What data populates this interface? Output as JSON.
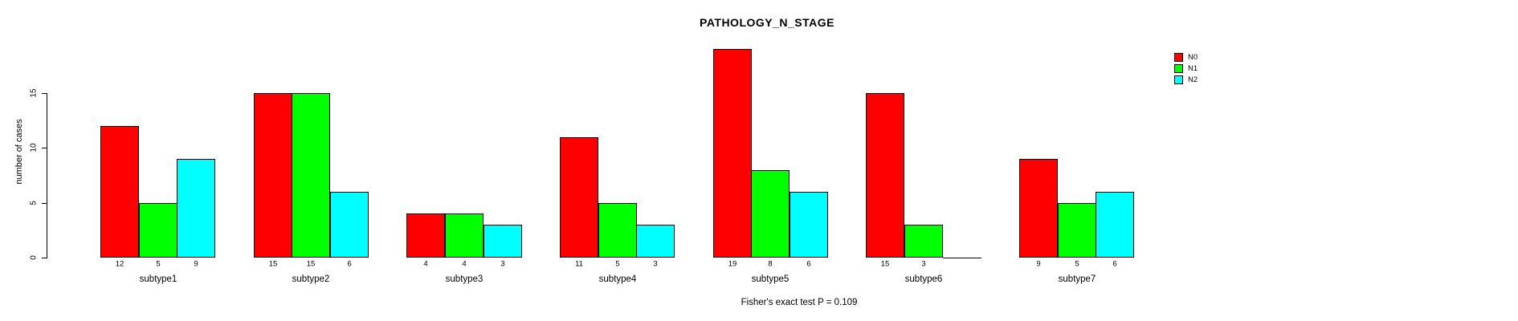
{
  "chart_data": {
    "type": "bar",
    "title": "PATHOLOGY_N_STAGE",
    "ylabel": "number of cases",
    "xlabel": "",
    "yticks": [
      0,
      5,
      10,
      15
    ],
    "ylim": [
      0,
      19
    ],
    "grid": false,
    "legend_position": "right",
    "categories": [
      "subtype1",
      "subtype2",
      "subtype3",
      "subtype4",
      "subtype5",
      "subtype6",
      "subtype7"
    ],
    "series": [
      {
        "name": "N0",
        "color": "#ff0000",
        "values": [
          12,
          15,
          4,
          11,
          19,
          15,
          9
        ]
      },
      {
        "name": "N1",
        "color": "#00ff00",
        "values": [
          5,
          15,
          4,
          5,
          8,
          3,
          5
        ]
      },
      {
        "name": "N2",
        "color": "#00ffff",
        "values": [
          9,
          6,
          3,
          3,
          6,
          0,
          6
        ]
      }
    ],
    "bar_labels": [
      [
        "12",
        "5",
        "9"
      ],
      [
        "15",
        "15",
        "6"
      ],
      [
        "4",
        "4",
        "3"
      ],
      [
        "11",
        "5",
        "3"
      ],
      [
        "19",
        "8",
        "6"
      ],
      [
        "15",
        "3",
        ""
      ],
      [
        "9",
        "5",
        "6"
      ]
    ],
    "caption": "Fisher's exact test P = 0.109"
  },
  "colors": {
    "axis": "#000000",
    "background": "#ffffff",
    "n0": "#ff0000",
    "n1": "#00ff00",
    "n2": "#00ffff"
  }
}
